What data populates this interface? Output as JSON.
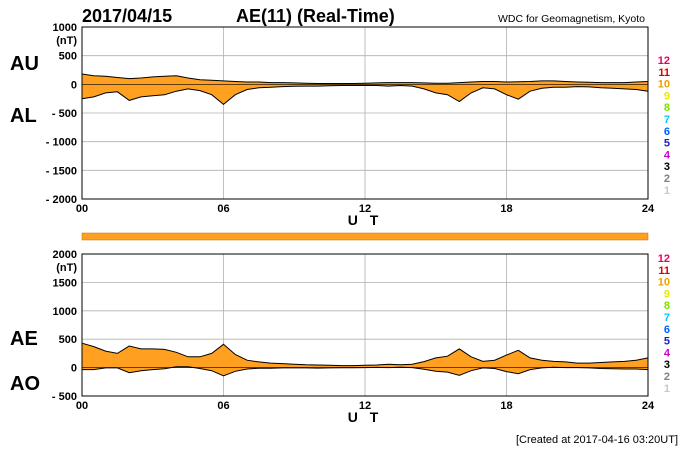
{
  "header": {
    "date": "2017/04/15",
    "title": "AE(11) (Real-Time)",
    "source": "WDC for Geomagnetism, Kyoto"
  },
  "footer": {
    "created": "[Created at 2017-04-16 03:20UT]"
  },
  "colors": {
    "fill": "#ffa020",
    "line": "#000000",
    "grid": "#b0b0b0"
  },
  "stations": {
    "labels": [
      "12",
      "11",
      "10",
      "9",
      "8",
      "7",
      "6",
      "5",
      "4",
      "3",
      "2",
      "1"
    ],
    "colors": [
      "#e8006a",
      "#e00000",
      "#f0a000",
      "#e8e800",
      "#80e000",
      "#00c8ff",
      "#0060ff",
      "#2020c0",
      "#d000d0",
      "#000000",
      "#808080",
      "#c8c8c8"
    ]
  },
  "chart_data": [
    {
      "type": "area",
      "name": "AU/AL",
      "labels": [
        "AU",
        "AL"
      ],
      "ylabel": "(nT)",
      "xlabel": "U T",
      "ylim": [
        -2000,
        1000
      ],
      "yticks": [
        1000,
        500,
        0,
        -500,
        -1000,
        -1500,
        -2000
      ],
      "ytick_labels": [
        "1000",
        "500",
        "0",
        "- 500",
        "- 1000",
        "- 1500",
        "- 2000"
      ],
      "xlim": [
        0,
        24
      ],
      "xticks": [
        0,
        6,
        12,
        18,
        24
      ],
      "xtick_labels": [
        "00",
        "06",
        "12",
        "18",
        "24"
      ],
      "grid": true,
      "series": [
        {
          "name": "AU",
          "x": [
            0,
            0.5,
            1,
            1.5,
            2,
            2.5,
            3,
            3.5,
            4,
            4.5,
            5,
            5.5,
            6,
            6.5,
            7,
            7.5,
            8,
            8.5,
            9,
            9.5,
            10,
            10.5,
            11,
            11.5,
            12,
            12.5,
            13,
            13.5,
            14,
            14.5,
            15,
            15.5,
            16,
            16.5,
            17,
            17.5,
            18,
            18.5,
            19,
            19.5,
            20,
            20.5,
            21,
            21.5,
            22,
            22.5,
            23,
            23.5,
            24
          ],
          "values": [
            180,
            150,
            140,
            120,
            100,
            110,
            130,
            140,
            150,
            110,
            80,
            70,
            60,
            50,
            40,
            40,
            30,
            30,
            25,
            20,
            15,
            15,
            15,
            15,
            20,
            25,
            30,
            30,
            30,
            25,
            20,
            20,
            30,
            40,
            50,
            50,
            40,
            45,
            50,
            60,
            60,
            50,
            40,
            35,
            30,
            30,
            30,
            40,
            50
          ]
        },
        {
          "name": "AL",
          "x": [
            0,
            0.5,
            1,
            1.5,
            2,
            2.5,
            3,
            3.5,
            4,
            4.5,
            5,
            5.5,
            6,
            6.5,
            7,
            7.5,
            8,
            8.5,
            9,
            9.5,
            10,
            10.5,
            11,
            11.5,
            12,
            12.5,
            13,
            13.5,
            14,
            14.5,
            15,
            15.5,
            16,
            16.5,
            17,
            17.5,
            18,
            18.5,
            19,
            19.5,
            20,
            20.5,
            21,
            21.5,
            22,
            22.5,
            23,
            23.5,
            24
          ],
          "values": [
            -250,
            -220,
            -150,
            -130,
            -280,
            -220,
            -200,
            -180,
            -120,
            -80,
            -110,
            -180,
            -350,
            -180,
            -90,
            -60,
            -50,
            -40,
            -35,
            -30,
            -30,
            -25,
            -20,
            -20,
            -20,
            -20,
            -30,
            -20,
            -30,
            -80,
            -150,
            -180,
            -300,
            -150,
            -60,
            -80,
            -180,
            -260,
            -120,
            -70,
            -50,
            -50,
            -40,
            -45,
            -60,
            -70,
            -80,
            -90,
            -120
          ]
        }
      ]
    },
    {
      "type": "area",
      "name": "AE/AO",
      "labels": [
        "AE",
        "AO"
      ],
      "ylabel": "(nT)",
      "xlabel": "U T",
      "ylim": [
        -500,
        2000
      ],
      "yticks": [
        2000,
        1500,
        1000,
        500,
        0,
        -500
      ],
      "ytick_labels": [
        "2000",
        "1500",
        "1000",
        "500",
        "0",
        "- 500"
      ],
      "xlim": [
        0,
        24
      ],
      "xticks": [
        0,
        6,
        12,
        18,
        24
      ],
      "xtick_labels": [
        "00",
        "06",
        "12",
        "18",
        "24"
      ],
      "grid": true,
      "series": [
        {
          "name": "AE",
          "x": [
            0,
            0.5,
            1,
            1.5,
            2,
            2.5,
            3,
            3.5,
            4,
            4.5,
            5,
            5.5,
            6,
            6.5,
            7,
            7.5,
            8,
            8.5,
            9,
            9.5,
            10,
            10.5,
            11,
            11.5,
            12,
            12.5,
            13,
            13.5,
            14,
            14.5,
            15,
            15.5,
            16,
            16.5,
            17,
            17.5,
            18,
            18.5,
            19,
            19.5,
            20,
            20.5,
            21,
            21.5,
            22,
            22.5,
            23,
            23.5,
            24
          ],
          "values": [
            430,
            370,
            290,
            250,
            380,
            330,
            330,
            320,
            270,
            190,
            190,
            250,
            410,
            230,
            130,
            100,
            80,
            70,
            60,
            50,
            45,
            40,
            35,
            35,
            40,
            45,
            60,
            50,
            60,
            105,
            170,
            200,
            330,
            190,
            110,
            130,
            220,
            305,
            170,
            130,
            110,
            100,
            80,
            80,
            90,
            100,
            110,
            130,
            170
          ]
        },
        {
          "name": "AO",
          "x": [
            0,
            0.5,
            1,
            1.5,
            2,
            2.5,
            3,
            3.5,
            4,
            4.5,
            5,
            5.5,
            6,
            6.5,
            7,
            7.5,
            8,
            8.5,
            9,
            9.5,
            10,
            10.5,
            11,
            11.5,
            12,
            12.5,
            13,
            13.5,
            14,
            14.5,
            15,
            15.5,
            16,
            16.5,
            17,
            17.5,
            18,
            18.5,
            19,
            19.5,
            20,
            20.5,
            21,
            21.5,
            22,
            22.5,
            23,
            23.5,
            24
          ],
          "values": [
            -35,
            -35,
            -5,
            -5,
            -90,
            -55,
            -35,
            -20,
            15,
            15,
            -15,
            -55,
            -145,
            -65,
            -25,
            -10,
            -10,
            -5,
            -5,
            -5,
            -8,
            -5,
            -3,
            -3,
            0,
            3,
            0,
            5,
            0,
            -28,
            -65,
            -80,
            -135,
            -55,
            -5,
            -15,
            -70,
            -108,
            -35,
            -5,
            5,
            0,
            0,
            -5,
            -15,
            -20,
            -25,
            -25,
            -35
          ]
        }
      ]
    }
  ]
}
